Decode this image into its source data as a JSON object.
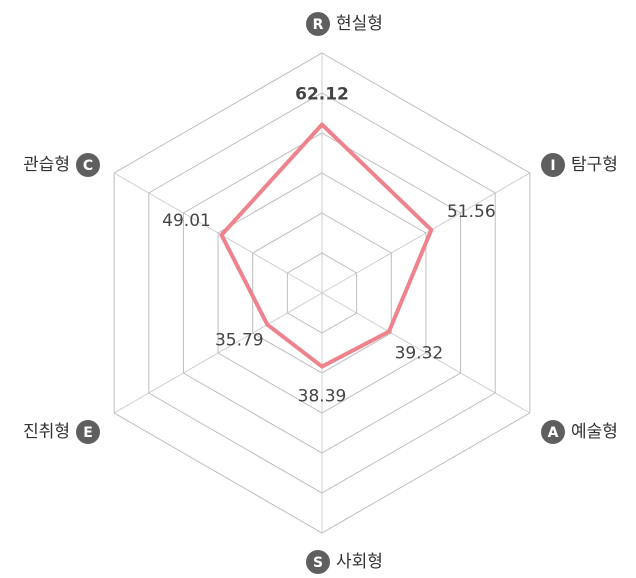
{
  "chart_data": {
    "type": "radar",
    "categories": [
      "현실형",
      "탐구형",
      "예술형",
      "사회형",
      "진취형",
      "관습형"
    ],
    "letters": [
      "R",
      "I",
      "A",
      "S",
      "E",
      "C"
    ],
    "values": [
      62.12,
      51.56,
      39.32,
      38.39,
      35.79,
      49.01
    ],
    "color": "#ee838d",
    "ylim": [
      20,
      80
    ],
    "yticks": [
      30,
      40,
      50,
      60,
      70,
      80
    ],
    "grid": true
  }
}
